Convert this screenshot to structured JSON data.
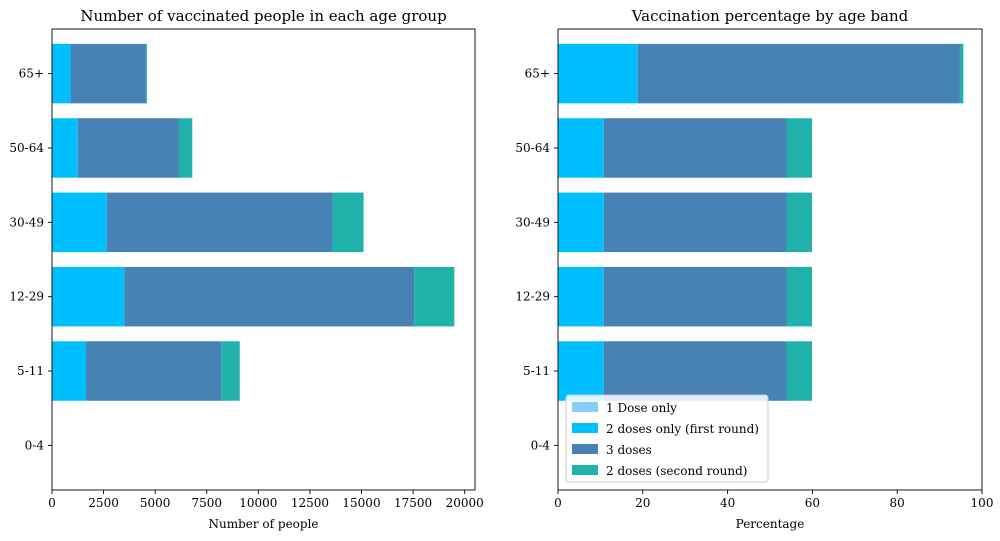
{
  "chart_data": [
    {
      "type": "bar",
      "orientation": "horizontal",
      "stacked": true,
      "title": "Number of vaccinated people in each age group",
      "xlabel": "Number of people",
      "ylabel": "",
      "categories": [
        "0-4",
        "5-11",
        "12-29",
        "30-49",
        "50-64",
        "65+"
      ],
      "xlim": [
        0,
        20500
      ],
      "xticks": [
        0,
        2500,
        5000,
        7500,
        10000,
        12500,
        15000,
        17500,
        20000
      ],
      "grid": false,
      "series": [
        {
          "name": "1 Dose only",
          "color": "#87cefa",
          "values": [
            0,
            0,
            0,
            0,
            0,
            0
          ]
        },
        {
          "name": "2 doses only (first round)",
          "color": "#00bfff",
          "values": [
            0,
            1650,
            3500,
            2650,
            1250,
            900
          ]
        },
        {
          "name": "3 doses",
          "color": "#4682b4",
          "values": [
            0,
            6550,
            14050,
            10950,
            4900,
            3650
          ]
        },
        {
          "name": "2 doses (second round)",
          "color": "#20b2aa",
          "values": [
            0,
            900,
            1950,
            1500,
            650,
            50
          ]
        }
      ]
    },
    {
      "type": "bar",
      "orientation": "horizontal",
      "stacked": true,
      "title": "Vaccination percentage by age band",
      "xlabel": "Percentage",
      "ylabel": "",
      "categories": [
        "0-4",
        "5-11",
        "12-29",
        "30-49",
        "50-64",
        "65+"
      ],
      "xlim": [
        0,
        100
      ],
      "xticks": [
        0,
        20,
        40,
        60,
        80,
        100
      ],
      "grid": false,
      "legend": "lower-left",
      "series": [
        {
          "name": "1 Dose only",
          "color": "#87cefa",
          "values": [
            0,
            0,
            0,
            0,
            0,
            0
          ]
        },
        {
          "name": "2 doses only (first round)",
          "color": "#00bfff",
          "values": [
            0,
            10.8,
            10.8,
            10.8,
            10.8,
            18.8
          ]
        },
        {
          "name": "3 doses",
          "color": "#4682b4",
          "values": [
            0,
            43.1,
            43.1,
            43.1,
            43.1,
            76.0
          ]
        },
        {
          "name": "2 doses (second round)",
          "color": "#20b2aa",
          "values": [
            0,
            6.0,
            6.0,
            6.0,
            6.0,
            0.8
          ]
        }
      ]
    }
  ]
}
